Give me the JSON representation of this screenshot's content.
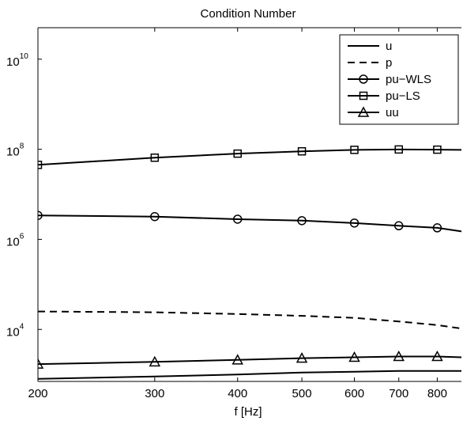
{
  "chart_data": {
    "type": "line",
    "title": "Condition Number",
    "xlabel": "f [Hz]",
    "ylabel": "",
    "xscale": "log",
    "yscale": "log",
    "xlim": [
      200,
      870
    ],
    "ylim": [
      700,
      50000000000
    ],
    "x_ticks": [
      200,
      300,
      400,
      500,
      600,
      700,
      800
    ],
    "x_tick_labels": [
      "200",
      "300",
      "400",
      "500",
      "600",
      "700",
      "800"
    ],
    "y_ticks": [
      10000,
      1000000,
      100000000,
      10000000000
    ],
    "y_tick_labels": [
      {
        "base": "10",
        "exp": "4"
      },
      {
        "base": "10",
        "exp": "6"
      },
      {
        "base": "10",
        "exp": "8"
      },
      {
        "base": "10",
        "exp": "10"
      }
    ],
    "grid": false,
    "legend_position": "top-right",
    "series": [
      {
        "name": "u",
        "style": "solid",
        "marker": "none",
        "x": [
          200,
          300,
          400,
          500,
          600,
          700,
          800,
          870
        ],
        "y": [
          800,
          900,
          1000,
          1100,
          1150,
          1200,
          1200,
          1200
        ]
      },
      {
        "name": "p",
        "style": "dashed",
        "marker": "none",
        "x": [
          200,
          300,
          400,
          500,
          600,
          700,
          800,
          870
        ],
        "y": [
          25000,
          24000,
          22000,
          20000,
          18000,
          15000,
          12500,
          10500
        ]
      },
      {
        "name": "pu−WLS",
        "style": "solid",
        "marker": "circle",
        "x": [
          200,
          300,
          400,
          500,
          600,
          700,
          800,
          870
        ],
        "y": [
          3400000,
          3200000,
          2800000,
          2600000,
          2300000,
          2000000,
          1800000,
          1500000
        ]
      },
      {
        "name": "pu−LS",
        "style": "solid",
        "marker": "square",
        "x": [
          200,
          300,
          400,
          500,
          600,
          700,
          800,
          870
        ],
        "y": [
          45000000,
          65000000,
          80000000,
          90000000,
          97000000,
          99000000,
          98000000,
          97000000
        ]
      },
      {
        "name": "uu",
        "style": "solid",
        "marker": "triangle",
        "x": [
          200,
          300,
          400,
          500,
          600,
          700,
          800,
          870
        ],
        "y": [
          1700,
          1900,
          2100,
          2300,
          2400,
          2500,
          2500,
          2400
        ]
      }
    ]
  }
}
